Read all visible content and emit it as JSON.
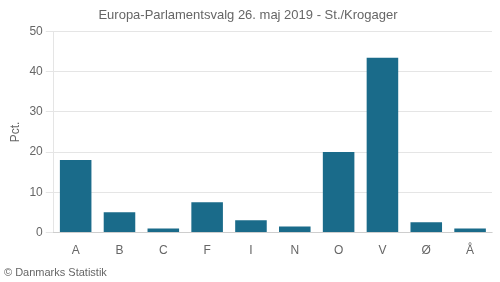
{
  "chart_data": {
    "type": "bar",
    "title": "Europa-Parlamentsvalg 26. maj 2019 - St./Krogager",
    "ylabel": "Pct.",
    "annotations": [
      "© Danmarks Statistik"
    ],
    "categories": [
      "A",
      "B",
      "C",
      "F",
      "I",
      "N",
      "O",
      "V",
      "Ø",
      "Å"
    ],
    "values": [
      18.0,
      5.0,
      1.0,
      7.5,
      3.0,
      1.5,
      20.0,
      43.5,
      2.5,
      1.0
    ],
    "color": "#1a6b8a",
    "ylim": [
      0,
      50
    ],
    "yticks": [
      0,
      10,
      20,
      30,
      40,
      50
    ],
    "grid": true
  }
}
